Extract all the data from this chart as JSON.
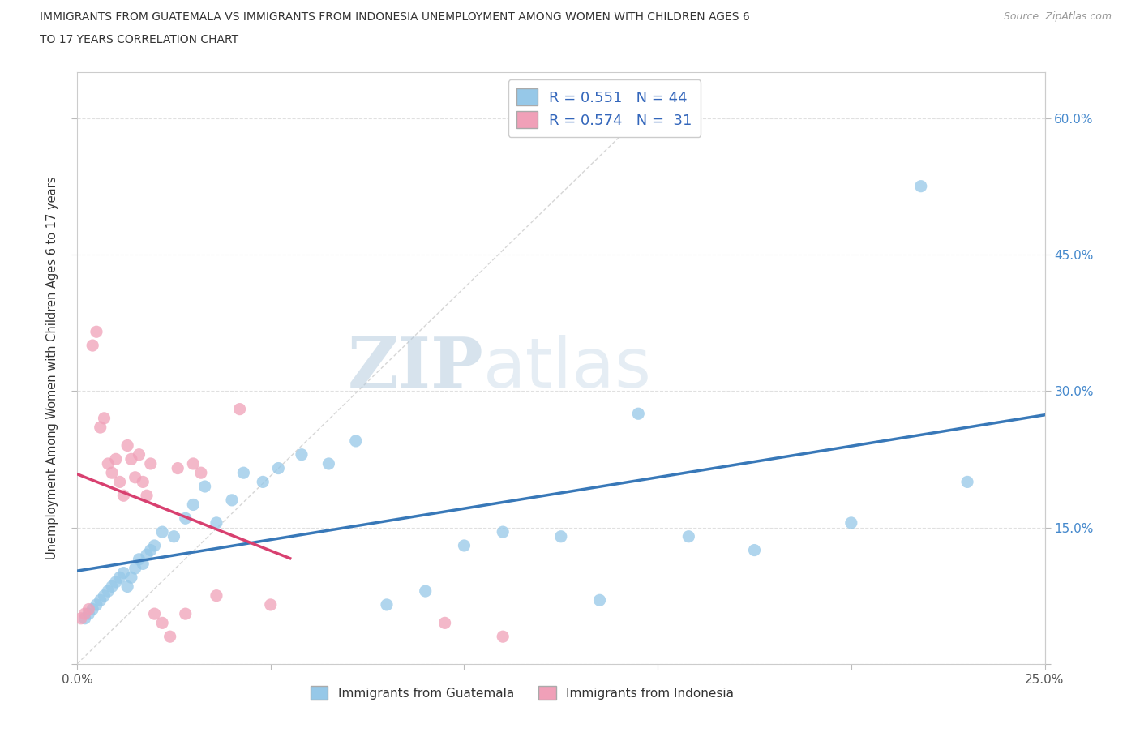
{
  "title_line1": "IMMIGRANTS FROM GUATEMALA VS IMMIGRANTS FROM INDONESIA UNEMPLOYMENT AMONG WOMEN WITH CHILDREN AGES 6",
  "title_line2": "TO 17 YEARS CORRELATION CHART",
  "source": "Source: ZipAtlas.com",
  "ylabel": "Unemployment Among Women with Children Ages 6 to 17 years",
  "xlim": [
    0.0,
    0.25
  ],
  "ylim": [
    0.0,
    0.65
  ],
  "xticks": [
    0.0,
    0.05,
    0.1,
    0.15,
    0.2,
    0.25
  ],
  "yticks": [
    0.0,
    0.15,
    0.3,
    0.45,
    0.6
  ],
  "xticklabels_left": [
    "0.0%",
    "",
    "",
    "",
    "",
    ""
  ],
  "xticklabels_right": "25.0%",
  "yticklabels": [
    "",
    "15.0%",
    "30.0%",
    "45.0%",
    "60.0%"
  ],
  "guatemala_color": "#96C8E8",
  "indonesia_color": "#F0A0B8",
  "guatemala_line_color": "#3878B8",
  "indonesia_line_color": "#D84070",
  "R_guatemala": "0.551",
  "N_guatemala": "44",
  "R_indonesia": "0.574",
  "N_indonesia": "31",
  "watermark_zip": "ZIP",
  "watermark_atlas": "atlas",
  "watermark_color_zip": "#B8CCE0",
  "watermark_color_atlas": "#B8CCE0",
  "diagonal_color": "#cccccc",
  "grid_color": "#e0e0e0",
  "guatemala_x": [
    0.002,
    0.003,
    0.004,
    0.005,
    0.006,
    0.007,
    0.008,
    0.009,
    0.01,
    0.011,
    0.012,
    0.013,
    0.014,
    0.015,
    0.016,
    0.017,
    0.018,
    0.019,
    0.02,
    0.022,
    0.025,
    0.028,
    0.03,
    0.033,
    0.036,
    0.04,
    0.043,
    0.048,
    0.052,
    0.058,
    0.065,
    0.072,
    0.08,
    0.09,
    0.1,
    0.11,
    0.125,
    0.135,
    0.145,
    0.158,
    0.175,
    0.2,
    0.218,
    0.23
  ],
  "guatemala_y": [
    0.05,
    0.055,
    0.06,
    0.065,
    0.07,
    0.075,
    0.08,
    0.085,
    0.09,
    0.095,
    0.1,
    0.085,
    0.095,
    0.105,
    0.115,
    0.11,
    0.12,
    0.125,
    0.13,
    0.145,
    0.14,
    0.16,
    0.175,
    0.195,
    0.155,
    0.18,
    0.21,
    0.2,
    0.215,
    0.23,
    0.22,
    0.245,
    0.065,
    0.08,
    0.13,
    0.145,
    0.14,
    0.07,
    0.275,
    0.14,
    0.125,
    0.155,
    0.525,
    0.2
  ],
  "indonesia_x": [
    0.001,
    0.002,
    0.003,
    0.004,
    0.005,
    0.006,
    0.007,
    0.008,
    0.009,
    0.01,
    0.011,
    0.012,
    0.013,
    0.014,
    0.015,
    0.016,
    0.017,
    0.018,
    0.019,
    0.02,
    0.022,
    0.024,
    0.026,
    0.028,
    0.03,
    0.032,
    0.036,
    0.042,
    0.05,
    0.095,
    0.11
  ],
  "indonesia_y": [
    0.05,
    0.055,
    0.06,
    0.35,
    0.365,
    0.26,
    0.27,
    0.22,
    0.21,
    0.225,
    0.2,
    0.185,
    0.24,
    0.225,
    0.205,
    0.23,
    0.2,
    0.185,
    0.22,
    0.055,
    0.045,
    0.03,
    0.215,
    0.055,
    0.22,
    0.21,
    0.075,
    0.28,
    0.065,
    0.045,
    0.03
  ]
}
